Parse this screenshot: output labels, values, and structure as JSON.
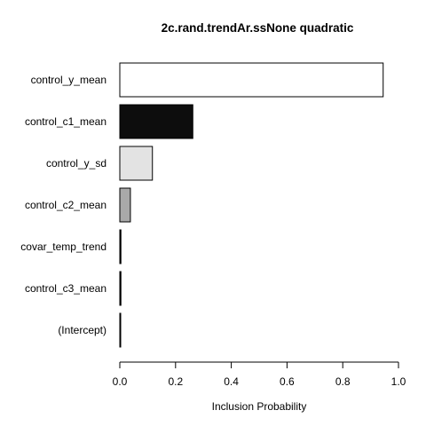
{
  "chart_data": {
    "type": "bar",
    "orientation": "horizontal",
    "title": "2c.rand.trendAr.ssNone quadratic",
    "xlabel": "Inclusion Probability",
    "ylabel": "",
    "xlim": [
      0,
      1
    ],
    "xticks": [
      0.0,
      0.2,
      0.4,
      0.6,
      0.8,
      1.0
    ],
    "xtick_labels": [
      "0.0",
      "0.2",
      "0.4",
      "0.6",
      "0.8",
      "1.0"
    ],
    "grid": false,
    "categories": [
      "control_y_mean",
      "control_c1_mean",
      "control_y_sd",
      "control_c2_mean",
      "covar_temp_trend",
      "control_c3_mean",
      "(Intercept)"
    ],
    "values": [
      0.945,
      0.262,
      0.117,
      0.038,
      0.004,
      0.004,
      0.001
    ],
    "colors": [
      "#ffffff",
      "#0d0d0d",
      "#e3e3e3",
      "#a9a9a9",
      "#000000",
      "#000000",
      "#000000"
    ]
  }
}
